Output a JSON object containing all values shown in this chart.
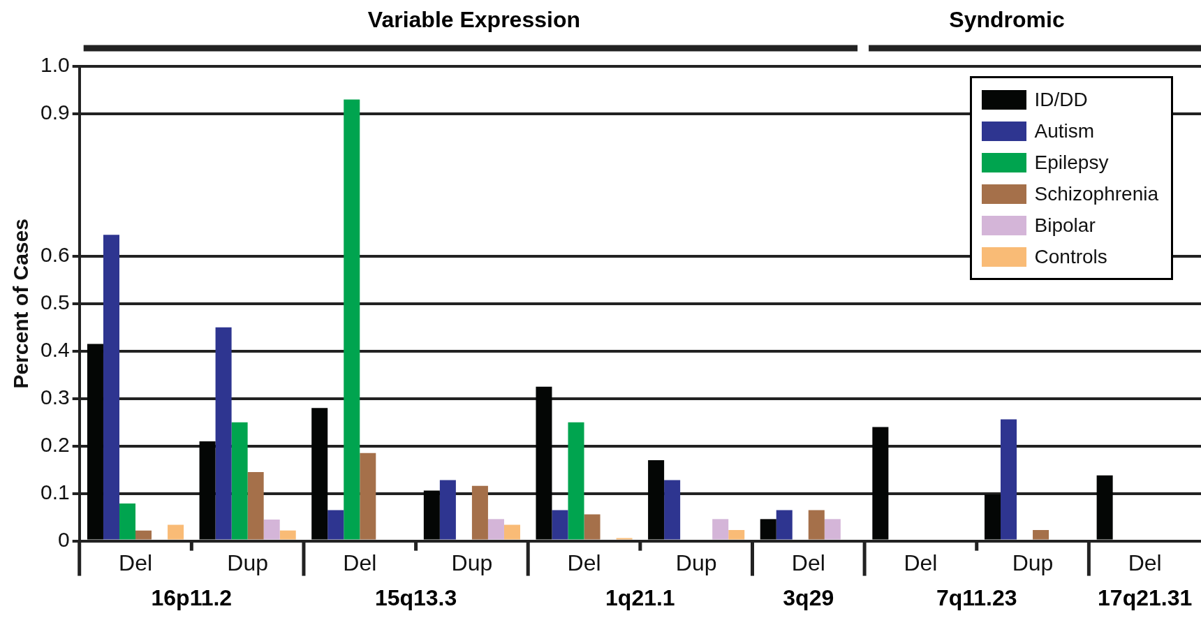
{
  "chart_data": {
    "type": "bar",
    "ylabel": "Percent of Cases",
    "categories": [
      "Del",
      "Dup",
      "Del",
      "Dup",
      "Del",
      "Dup",
      "Del",
      "Del",
      "Dup",
      "Del"
    ],
    "series": [
      {
        "name": "ID/DD",
        "color": "#040605",
        "values": [
          0.415,
          0.21,
          0.28,
          0.106,
          0.325,
          0.17,
          0.046,
          0.24,
          0.098,
          0.138
        ]
      },
      {
        "name": "Autism",
        "color": "#2e3590",
        "values": [
          0.645,
          0.45,
          0.065,
          0.128,
          0.065,
          0.128,
          0.065,
          null,
          0.256,
          null
        ]
      },
      {
        "name": "Epilepsy",
        "color": "#00a44f",
        "values": [
          0.079,
          0.25,
          0.93,
          null,
          0.25,
          null,
          null,
          null,
          null,
          null
        ]
      },
      {
        "name": "Schizophrenia",
        "color": "#a5704a",
        "values": [
          0.022,
          0.145,
          0.185,
          0.116,
          0.056,
          null,
          0.065,
          null,
          0.023,
          null
        ]
      },
      {
        "name": "Bipolar",
        "color": "#d4b5d8",
        "values": [
          null,
          0.045,
          null,
          0.046,
          null,
          0.046,
          0.046,
          null,
          null,
          null
        ]
      },
      {
        "name": "Controls",
        "color": "#f9bb76",
        "values": [
          0.034,
          0.022,
          null,
          0.034,
          0.006,
          0.023,
          null,
          null,
          null,
          null
        ]
      }
    ],
    "ylim": [
      0,
      1.0
    ],
    "yticks": [
      0,
      0.1,
      0.2,
      0.3,
      0.4,
      0.5,
      0.6,
      0.9,
      {
        "value": 1.0,
        "label": "1.0"
      }
    ],
    "grid": "y",
    "legend": "top right",
    "annotations": [
      "Variable Expression",
      "Syndromic",
      "16p11.2",
      "15q13.3",
      "1q21.1",
      "3q29",
      "7q11.23",
      "17q21.31"
    ]
  }
}
